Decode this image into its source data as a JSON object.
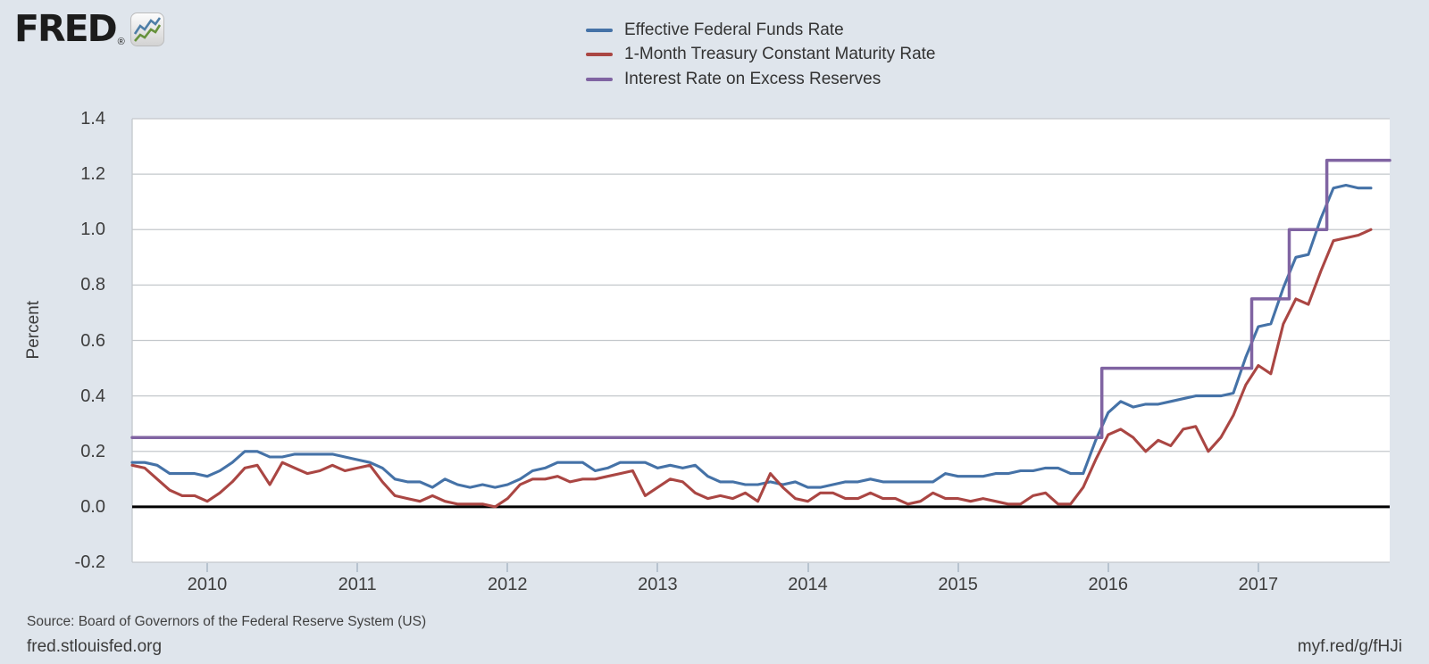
{
  "header": {
    "logo_text": "FRED",
    "logo_reg": "®"
  },
  "footer": {
    "source": "Source: Board of Governors of the Federal Reserve System (US)",
    "site": "fred.stlouisfed.org",
    "short_url": "myf.red/g/fHJi"
  },
  "chart_data": {
    "type": "line",
    "title": "",
    "xlabel": "",
    "ylabel": "Percent",
    "x_range": [
      2009.5,
      2017.875
    ],
    "y_range": [
      -0.2,
      1.4
    ],
    "grid": "horizontal",
    "zero_line": 0.0,
    "legend_position": "top",
    "yticks": [
      {
        "v": 1.4,
        "label": "1.4"
      },
      {
        "v": 1.2,
        "label": "1.2"
      },
      {
        "v": 1.0,
        "label": "1.0"
      },
      {
        "v": 0.8,
        "label": "0.8"
      },
      {
        "v": 0.6,
        "label": "0.6"
      },
      {
        "v": 0.4,
        "label": "0.4"
      },
      {
        "v": 0.2,
        "label": "0.2"
      },
      {
        "v": 0.0,
        "label": "0.0"
      },
      {
        "v": -0.2,
        "label": "-0.2"
      }
    ],
    "xticks": [
      {
        "v": 2010,
        "label": "2010"
      },
      {
        "v": 2011,
        "label": "2011"
      },
      {
        "v": 2012,
        "label": "2012"
      },
      {
        "v": 2013,
        "label": "2013"
      },
      {
        "v": 2014,
        "label": "2014"
      },
      {
        "v": 2015,
        "label": "2015"
      },
      {
        "v": 2016,
        "label": "2016"
      },
      {
        "v": 2017,
        "label": "2017"
      }
    ],
    "series": [
      {
        "name": "Effective Federal Funds Rate",
        "color": "#4572a7",
        "mode": "monthly",
        "start": 2009.5,
        "points_per_year": 12,
        "values": [
          0.16,
          0.16,
          0.15,
          0.12,
          0.12,
          0.12,
          0.11,
          0.13,
          0.16,
          0.2,
          0.2,
          0.18,
          0.18,
          0.19,
          0.19,
          0.19,
          0.19,
          0.18,
          0.17,
          0.16,
          0.14,
          0.1,
          0.09,
          0.09,
          0.07,
          0.1,
          0.08,
          0.07,
          0.08,
          0.07,
          0.08,
          0.1,
          0.13,
          0.14,
          0.16,
          0.16,
          0.16,
          0.13,
          0.14,
          0.16,
          0.16,
          0.16,
          0.14,
          0.15,
          0.14,
          0.15,
          0.11,
          0.09,
          0.09,
          0.08,
          0.08,
          0.09,
          0.08,
          0.09,
          0.07,
          0.07,
          0.08,
          0.09,
          0.09,
          0.1,
          0.09,
          0.09,
          0.09,
          0.09,
          0.09,
          0.12,
          0.11,
          0.11,
          0.11,
          0.12,
          0.12,
          0.13,
          0.13,
          0.14,
          0.14,
          0.12,
          0.12,
          0.24,
          0.34,
          0.38,
          0.36,
          0.37,
          0.37,
          0.38,
          0.39,
          0.4,
          0.4,
          0.4,
          0.41,
          0.54,
          0.65,
          0.66,
          0.79,
          0.9,
          0.91,
          1.04,
          1.15,
          1.16,
          1.15,
          1.15
        ]
      },
      {
        "name": "1-Month Treasury Constant Maturity Rate",
        "color": "#aa4643",
        "mode": "monthly",
        "start": 2009.5,
        "points_per_year": 12,
        "values": [
          0.15,
          0.14,
          0.1,
          0.06,
          0.04,
          0.04,
          0.02,
          0.05,
          0.09,
          0.14,
          0.15,
          0.08,
          0.16,
          0.14,
          0.12,
          0.13,
          0.15,
          0.13,
          0.14,
          0.15,
          0.09,
          0.04,
          0.03,
          0.02,
          0.04,
          0.02,
          0.01,
          0.01,
          0.01,
          0.0,
          0.03,
          0.08,
          0.1,
          0.1,
          0.11,
          0.09,
          0.1,
          0.1,
          0.11,
          0.12,
          0.13,
          0.04,
          0.07,
          0.1,
          0.09,
          0.05,
          0.03,
          0.04,
          0.03,
          0.05,
          0.02,
          0.12,
          0.07,
          0.03,
          0.02,
          0.05,
          0.05,
          0.03,
          0.03,
          0.05,
          0.03,
          0.03,
          0.01,
          0.02,
          0.05,
          0.03,
          0.03,
          0.02,
          0.03,
          0.02,
          0.01,
          0.01,
          0.04,
          0.05,
          0.01,
          0.01,
          0.07,
          0.17,
          0.26,
          0.28,
          0.25,
          0.2,
          0.24,
          0.22,
          0.28,
          0.29,
          0.2,
          0.25,
          0.33,
          0.44,
          0.51,
          0.48,
          0.66,
          0.75,
          0.73,
          0.85,
          0.96,
          0.97,
          0.98,
          1.0
        ]
      },
      {
        "name": "Interest Rate on Excess Reserves",
        "color": "#8064a2",
        "mode": "points",
        "points": [
          [
            2009.5,
            0.25
          ],
          [
            2015.958,
            0.25
          ],
          [
            2015.958,
            0.5
          ],
          [
            2016.956,
            0.5
          ],
          [
            2016.956,
            0.75
          ],
          [
            2017.206,
            0.75
          ],
          [
            2017.206,
            1.0
          ],
          [
            2017.456,
            1.0
          ],
          [
            2017.456,
            1.25
          ],
          [
            2017.875,
            1.25
          ]
        ]
      }
    ]
  }
}
